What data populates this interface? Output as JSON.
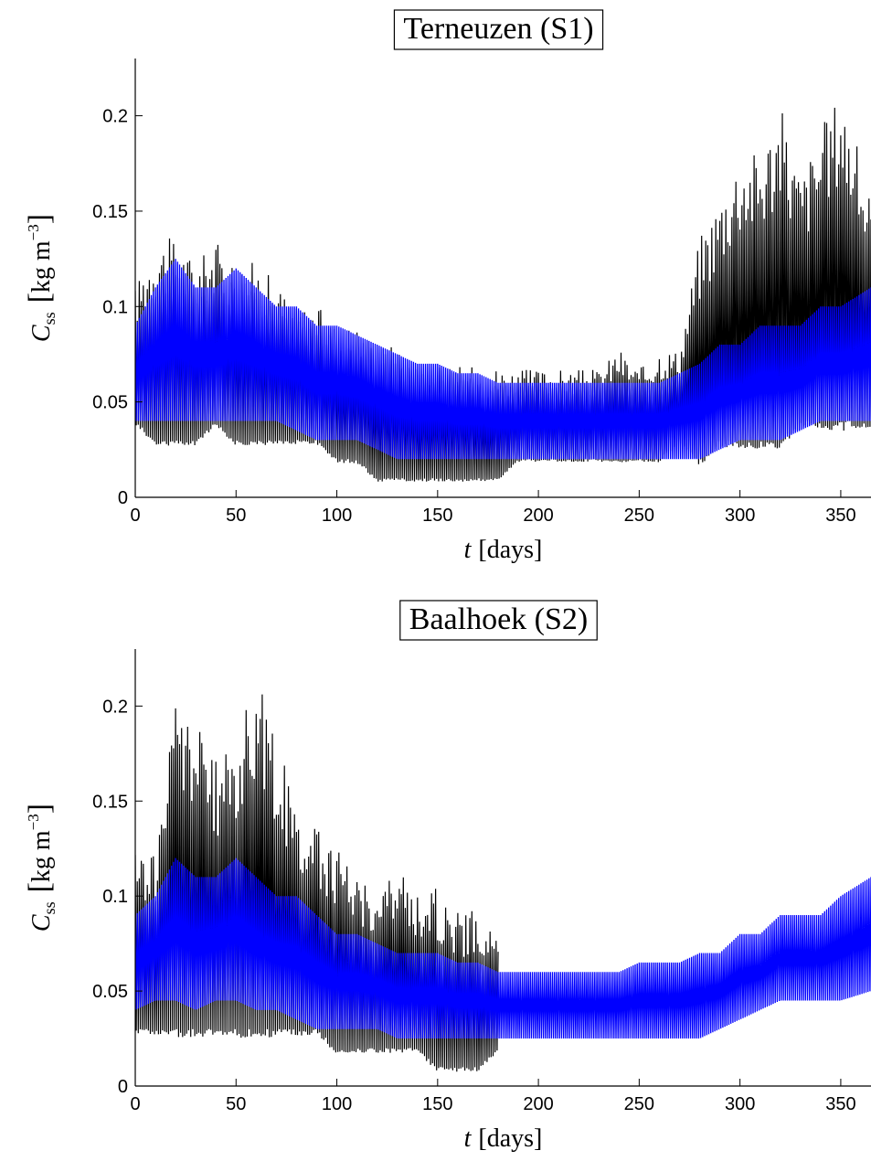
{
  "chart_data": [
    {
      "type": "line",
      "title": "Terneuzen (S1)",
      "xlabel_var": "t",
      "xlabel_unit": "[days]",
      "ylabel_var": "C",
      "ylabel_sub": "ss",
      "ylabel_unit_open": "[",
      "ylabel_unit_main": "kg m",
      "ylabel_unit_exp": "−3",
      "ylabel_unit_close": "]",
      "xlim": [
        0,
        365
      ],
      "ylim": [
        0,
        0.23
      ],
      "xticks": [
        0,
        50,
        100,
        150,
        200,
        250,
        300,
        350
      ],
      "xtick_labels": [
        "0",
        "50",
        "100",
        "150",
        "200",
        "250",
        "300",
        "350"
      ],
      "yticks": [
        0,
        0.05,
        0.1,
        0.15,
        0.2
      ],
      "ytick_labels": [
        "0",
        "0.05",
        "0.1",
        "0.15",
        "0.2"
      ],
      "grid": false,
      "series_colors": [
        "#000000",
        "#0000ff"
      ],
      "envelope_t": [
        0,
        10,
        20,
        30,
        40,
        50,
        60,
        70,
        80,
        90,
        100,
        110,
        120,
        130,
        140,
        150,
        160,
        170,
        180,
        190,
        200,
        210,
        220,
        230,
        240,
        250,
        260,
        270,
        280,
        290,
        300,
        310,
        320,
        330,
        340,
        350,
        365
      ],
      "series": [
        {
          "values_max": [
            0.1,
            0.12,
            0.12,
            0.11,
            0.12,
            0.11,
            0.11,
            0.1,
            0.09,
            0.09,
            0.08,
            0.08,
            0.07,
            0.07,
            0.06,
            0.06,
            0.06,
            0.06,
            0.06,
            0.06,
            0.06,
            0.06,
            0.06,
            0.06,
            0.07,
            0.06,
            0.07,
            0.07,
            0.12,
            0.14,
            0.16,
            0.16,
            0.18,
            0.15,
            0.17,
            0.19,
            0.14
          ],
          "values_min": [
            0.04,
            0.03,
            0.03,
            0.03,
            0.04,
            0.03,
            0.03,
            0.03,
            0.03,
            0.03,
            0.02,
            0.02,
            0.01,
            0.01,
            0.01,
            0.01,
            0.01,
            0.01,
            0.01,
            0.02,
            0.02,
            0.02,
            0.02,
            0.02,
            0.02,
            0.02,
            0.02,
            0.03,
            0.02,
            0.03,
            0.03,
            0.03,
            0.03,
            0.04,
            0.04,
            0.04,
            0.04
          ]
        },
        {
          "values_max": [
            0.09,
            0.11,
            0.125,
            0.11,
            0.11,
            0.12,
            0.11,
            0.1,
            0.1,
            0.09,
            0.09,
            0.085,
            0.08,
            0.075,
            0.07,
            0.07,
            0.065,
            0.065,
            0.06,
            0.06,
            0.06,
            0.06,
            0.06,
            0.06,
            0.06,
            0.06,
            0.06,
            0.065,
            0.07,
            0.08,
            0.08,
            0.09,
            0.09,
            0.09,
            0.1,
            0.1,
            0.11
          ],
          "values_min": [
            0.04,
            0.04,
            0.04,
            0.04,
            0.04,
            0.04,
            0.04,
            0.04,
            0.035,
            0.03,
            0.03,
            0.03,
            0.025,
            0.02,
            0.02,
            0.02,
            0.02,
            0.02,
            0.02,
            0.02,
            0.02,
            0.02,
            0.02,
            0.02,
            0.02,
            0.02,
            0.02,
            0.02,
            0.02,
            0.025,
            0.03,
            0.03,
            0.03,
            0.035,
            0.04,
            0.04,
            0.04
          ]
        }
      ]
    },
    {
      "type": "line",
      "title": "Baalhoek (S2)",
      "xlabel_var": "t",
      "xlabel_unit": "[days]",
      "ylabel_var": "C",
      "ylabel_sub": "ss",
      "ylabel_unit_open": "[",
      "ylabel_unit_main": "kg m",
      "ylabel_unit_exp": "−3",
      "ylabel_unit_close": "]",
      "xlim": [
        0,
        365
      ],
      "ylim": [
        0,
        0.23
      ],
      "xticks": [
        0,
        50,
        100,
        150,
        200,
        250,
        300,
        350
      ],
      "xtick_labels": [
        "0",
        "50",
        "100",
        "150",
        "200",
        "250",
        "300",
        "350"
      ],
      "yticks": [
        0,
        0.05,
        0.1,
        0.15,
        0.2
      ],
      "ytick_labels": [
        "0",
        "0.05",
        "0.1",
        "0.15",
        "0.2"
      ],
      "grid": false,
      "series_colors": [
        "#000000",
        "#0000ff"
      ],
      "envelope_t": [
        0,
        10,
        20,
        30,
        40,
        50,
        60,
        70,
        80,
        90,
        100,
        110,
        120,
        130,
        140,
        150,
        160,
        170,
        180
      ],
      "series": [
        {
          "values_max": [
            0.11,
            0.11,
            0.18,
            0.17,
            0.15,
            0.16,
            0.19,
            0.16,
            0.13,
            0.12,
            0.11,
            0.1,
            0.09,
            0.1,
            0.09,
            0.09,
            0.08,
            0.08,
            0.07
          ],
          "values_min": [
            0.03,
            0.03,
            0.03,
            0.03,
            0.03,
            0.03,
            0.03,
            0.03,
            0.03,
            0.03,
            0.02,
            0.02,
            0.02,
            0.02,
            0.02,
            0.01,
            0.01,
            0.01,
            0.02
          ]
        },
        {
          "envelope_t": [
            0,
            10,
            20,
            30,
            40,
            50,
            60,
            70,
            80,
            90,
            100,
            110,
            120,
            130,
            140,
            150,
            160,
            170,
            180,
            190,
            200,
            210,
            220,
            230,
            240,
            250,
            260,
            270,
            280,
            290,
            300,
            310,
            320,
            330,
            340,
            350,
            365
          ],
          "values_max": [
            0.09,
            0.1,
            0.12,
            0.11,
            0.11,
            0.12,
            0.11,
            0.1,
            0.1,
            0.09,
            0.08,
            0.08,
            0.075,
            0.07,
            0.07,
            0.07,
            0.065,
            0.065,
            0.06,
            0.06,
            0.06,
            0.06,
            0.06,
            0.06,
            0.06,
            0.065,
            0.065,
            0.065,
            0.07,
            0.07,
            0.08,
            0.08,
            0.09,
            0.09,
            0.09,
            0.1,
            0.11
          ],
          "values_min": [
            0.04,
            0.045,
            0.045,
            0.04,
            0.045,
            0.045,
            0.04,
            0.04,
            0.035,
            0.03,
            0.03,
            0.03,
            0.03,
            0.025,
            0.025,
            0.025,
            0.025,
            0.025,
            0.025,
            0.025,
            0.025,
            0.025,
            0.025,
            0.025,
            0.025,
            0.025,
            0.025,
            0.025,
            0.025,
            0.03,
            0.035,
            0.04,
            0.045,
            0.045,
            0.045,
            0.045,
            0.05
          ]
        }
      ]
    }
  ]
}
